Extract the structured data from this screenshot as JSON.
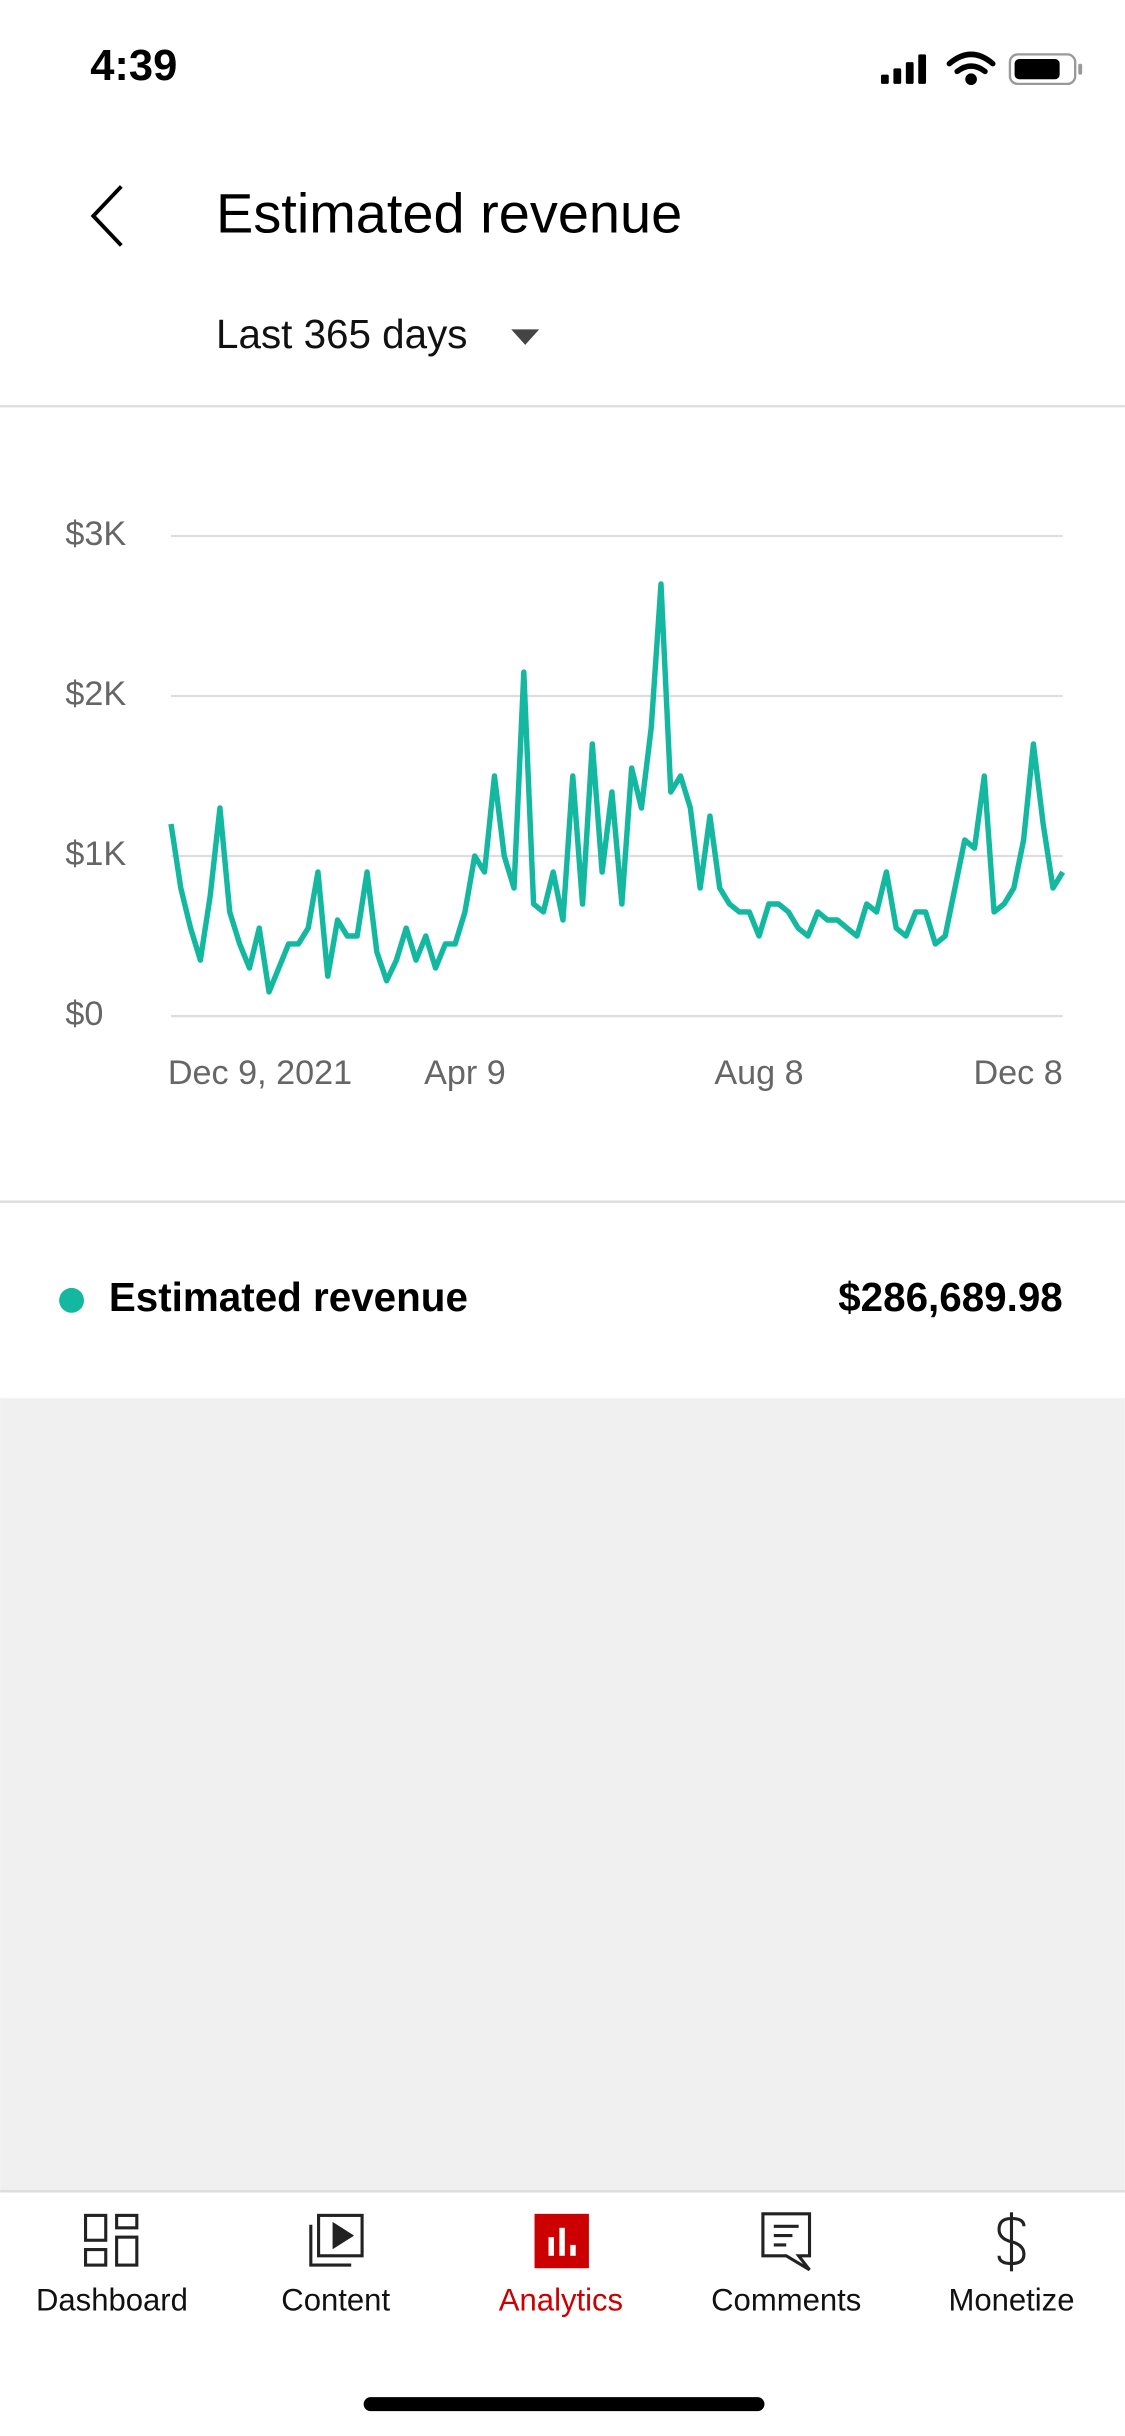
{
  "status_bar": {
    "time": "4:39"
  },
  "header": {
    "title": "Estimated revenue",
    "period": "Last 365 days"
  },
  "chart_data": {
    "type": "line",
    "categories": [
      "Dec 9, 2021",
      null,
      null,
      null,
      null,
      null,
      null,
      null,
      null,
      null,
      null,
      null,
      null,
      null,
      null,
      null,
      null,
      null,
      null,
      null,
      null,
      null,
      null,
      null,
      null,
      null,
      null,
      null,
      null,
      null,
      "Apr 9",
      null,
      null,
      null,
      null,
      null,
      null,
      null,
      null,
      null,
      null,
      null,
      null,
      null,
      null,
      null,
      null,
      null,
      null,
      null,
      null,
      null,
      null,
      null,
      null,
      null,
      null,
      null,
      null,
      null,
      "Aug 8",
      null,
      null,
      null,
      null,
      null,
      null,
      null,
      null,
      null,
      null,
      null,
      null,
      null,
      null,
      null,
      null,
      null,
      null,
      null,
      null,
      null,
      null,
      null,
      null,
      null,
      null,
      null,
      null,
      null,
      null,
      "Dec 8"
    ],
    "series": [
      {
        "name": "Estimated revenue",
        "color": "#14b8a0",
        "values": [
          1200,
          800,
          550,
          350,
          750,
          1300,
          650,
          450,
          300,
          550,
          150,
          300,
          450,
          450,
          550,
          900,
          250,
          600,
          500,
          500,
          900,
          400,
          220,
          350,
          550,
          350,
          500,
          300,
          450,
          450,
          650,
          1000,
          900,
          1500,
          1000,
          800,
          2150,
          700,
          650,
          900,
          600,
          1500,
          700,
          1700,
          900,
          1400,
          700,
          1550,
          1300,
          1800,
          2700,
          1400,
          1500,
          1300,
          800,
          1250,
          800,
          700,
          650,
          650,
          500,
          700,
          700,
          650,
          550,
          500,
          650,
          600,
          600,
          550,
          500,
          700,
          650,
          900,
          550,
          500,
          650,
          650,
          450,
          500,
          800,
          1100,
          1050,
          1500,
          650,
          700,
          800,
          1100,
          1700,
          1200,
          800,
          900
        ]
      }
    ],
    "ylim": [
      0,
      3000
    ],
    "yticks": [
      {
        "value": 0,
        "label": "$0"
      },
      {
        "value": 1000,
        "label": "$1K"
      },
      {
        "value": 2000,
        "label": "$2K"
      },
      {
        "value": 3000,
        "label": "$3K"
      }
    ],
    "grid": true
  },
  "summary": {
    "total": "$286,689.98"
  },
  "nav": {
    "items": [
      "Dashboard",
      "Content",
      "Analytics",
      "Comments",
      "Monetize"
    ]
  }
}
